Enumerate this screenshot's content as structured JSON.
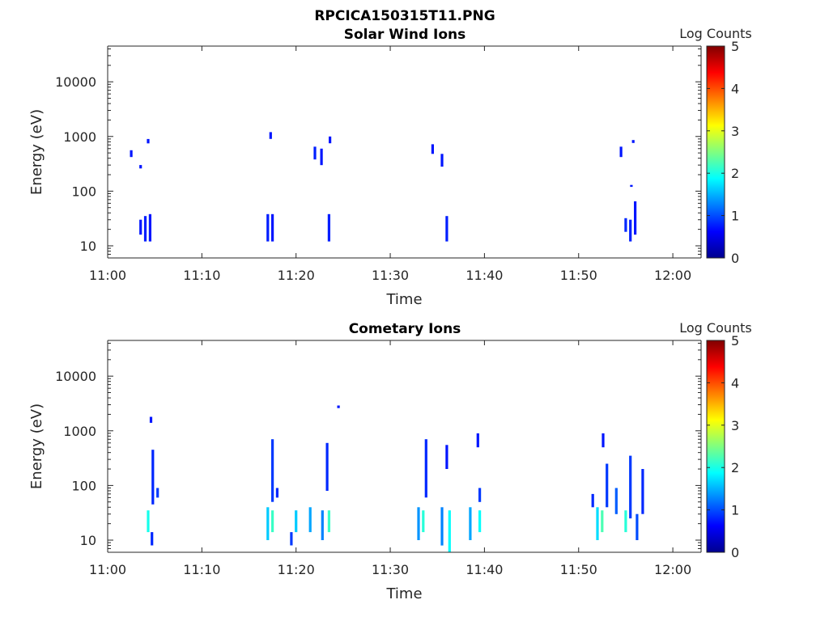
{
  "figure": {
    "title": "RPCICA150315T11.PNG"
  },
  "chart_data": [
    {
      "type": "heatmap",
      "title": "Solar Wind Ions",
      "xlabel": "Time",
      "ylabel": "Energy (eV)",
      "x_ticks": [
        "11:00",
        "11:10",
        "11:20",
        "11:30",
        "11:40",
        "11:50",
        "12:00"
      ],
      "xlim": [
        "11:00",
        "12:03"
      ],
      "y_ticks": [
        "10",
        "100",
        "1000",
        "10000"
      ],
      "ylim": [
        6,
        45000
      ],
      "yscale": "log",
      "colorbar": {
        "label": "Log Counts",
        "ticks": [
          "0",
          "1",
          "2",
          "3",
          "4",
          "5"
        ],
        "range": [
          0,
          5
        ],
        "colormap": "jet"
      },
      "cells": [
        {
          "t": "11:03.5",
          "e_lo": 16,
          "e_hi": 30,
          "v": 0.2
        },
        {
          "t": "11:04.0",
          "e_lo": 12,
          "e_hi": 35,
          "v": 0.25
        },
        {
          "t": "11:04.5",
          "e_lo": 12,
          "e_hi": 38,
          "v": 0.2
        },
        {
          "t": "11:02.5",
          "e_lo": 420,
          "e_hi": 560,
          "v": 0.2
        },
        {
          "t": "11:03.5",
          "e_lo": 260,
          "e_hi": 300,
          "v": 0.2
        },
        {
          "t": "11:04.3",
          "e_lo": 750,
          "e_hi": 900,
          "v": 0.2
        },
        {
          "t": "11:17.0",
          "e_lo": 12,
          "e_hi": 38,
          "v": 0.25
        },
        {
          "t": "11:17.5",
          "e_lo": 12,
          "e_hi": 38,
          "v": 0.2
        },
        {
          "t": "11:17.3",
          "e_lo": 900,
          "e_hi": 1200,
          "v": 0.2
        },
        {
          "t": "11:22.0",
          "e_lo": 380,
          "e_hi": 650,
          "v": 0.25
        },
        {
          "t": "11:22.7",
          "e_lo": 300,
          "e_hi": 600,
          "v": 0.2
        },
        {
          "t": "11:23.5",
          "e_lo": 12,
          "e_hi": 38,
          "v": 0.25
        },
        {
          "t": "11:23.6",
          "e_lo": 750,
          "e_hi": 1000,
          "v": 0.2
        },
        {
          "t": "11:34.5",
          "e_lo": 480,
          "e_hi": 720,
          "v": 0.2
        },
        {
          "t": "11:35.5",
          "e_lo": 280,
          "e_hi": 480,
          "v": 0.2
        },
        {
          "t": "11:36.0",
          "e_lo": 12,
          "e_hi": 35,
          "v": 0.25
        },
        {
          "t": "11:54.5",
          "e_lo": 420,
          "e_hi": 650,
          "v": 0.2
        },
        {
          "t": "11:55.0",
          "e_lo": 18,
          "e_hi": 32,
          "v": 0.3
        },
        {
          "t": "11:55.5",
          "e_lo": 12,
          "e_hi": 30,
          "v": 0.25
        },
        {
          "t": "11:56.0",
          "e_lo": 16,
          "e_hi": 65,
          "v": 0.2
        },
        {
          "t": "11:55.6",
          "e_lo": 120,
          "e_hi": 130,
          "v": 0.2
        },
        {
          "t": "11:55.8",
          "e_lo": 760,
          "e_hi": 860,
          "v": 0.2
        }
      ]
    },
    {
      "type": "heatmap",
      "title": "Cometary Ions",
      "xlabel": "Time",
      "ylabel": "Energy (eV)",
      "x_ticks": [
        "11:00",
        "11:10",
        "11:20",
        "11:30",
        "11:40",
        "11:50",
        "12:00"
      ],
      "xlim": [
        "11:00",
        "12:03"
      ],
      "y_ticks": [
        "10",
        "100",
        "1000",
        "10000"
      ],
      "ylim": [
        6,
        45000
      ],
      "yscale": "log",
      "colorbar": {
        "label": "Log Counts",
        "ticks": [
          "0",
          "1",
          "2",
          "3",
          "4",
          "5"
        ],
        "range": [
          0,
          5
        ],
        "colormap": "jet"
      },
      "cells": [
        {
          "t": "11:04.3",
          "e_lo": 14,
          "e_hi": 35,
          "v": 1.6
        },
        {
          "t": "11:04.7",
          "e_lo": 8,
          "e_hi": 14,
          "v": 0.3
        },
        {
          "t": "11:04.8",
          "e_lo": 45,
          "e_hi": 450,
          "v": 0.3
        },
        {
          "t": "11:05.3",
          "e_lo": 60,
          "e_hi": 90,
          "v": 0.4
        },
        {
          "t": "11:04.6",
          "e_lo": 1400,
          "e_hi": 1800,
          "v": 0.2
        },
        {
          "t": "11:17.0",
          "e_lo": 10,
          "e_hi": 40,
          "v": 1.2
        },
        {
          "t": "11:17.5",
          "e_lo": 14,
          "e_hi": 35,
          "v": 1.8
        },
        {
          "t": "11:17.5",
          "e_lo": 50,
          "e_hi": 700,
          "v": 0.4
        },
        {
          "t": "11:18.0",
          "e_lo": 60,
          "e_hi": 90,
          "v": 0.3
        },
        {
          "t": "11:19.5",
          "e_lo": 8,
          "e_hi": 14,
          "v": 0.4
        },
        {
          "t": "11:20.0",
          "e_lo": 14,
          "e_hi": 35,
          "v": 1.2
        },
        {
          "t": "11:21.5",
          "e_lo": 14,
          "e_hi": 40,
          "v": 1.0
        },
        {
          "t": "11:22.8",
          "e_lo": 10,
          "e_hi": 35,
          "v": 0.8
        },
        {
          "t": "11:23.5",
          "e_lo": 14,
          "e_hi": 35,
          "v": 1.8
        },
        {
          "t": "11:23.3",
          "e_lo": 80,
          "e_hi": 600,
          "v": 0.3
        },
        {
          "t": "11:24.5",
          "e_lo": 2600,
          "e_hi": 2900,
          "v": 0.2
        },
        {
          "t": "11:33.0",
          "e_lo": 10,
          "e_hi": 40,
          "v": 0.9
        },
        {
          "t": "11:33.5",
          "e_lo": 14,
          "e_hi": 35,
          "v": 1.7
        },
        {
          "t": "11:33.8",
          "e_lo": 60,
          "e_hi": 700,
          "v": 0.3
        },
        {
          "t": "11:35.5",
          "e_lo": 8,
          "e_hi": 40,
          "v": 0.8
        },
        {
          "t": "11:36.3",
          "e_lo": 6,
          "e_hi": 35,
          "v": 1.5
        },
        {
          "t": "11:36.0",
          "e_lo": 200,
          "e_hi": 550,
          "v": 0.2
        },
        {
          "t": "11:38.5",
          "e_lo": 10,
          "e_hi": 40,
          "v": 1.0
        },
        {
          "t": "11:39.5",
          "e_lo": 14,
          "e_hi": 35,
          "v": 1.5
        },
        {
          "t": "11:39.5",
          "e_lo": 50,
          "e_hi": 90,
          "v": 0.4
        },
        {
          "t": "11:39.3",
          "e_lo": 500,
          "e_hi": 900,
          "v": 0.2
        },
        {
          "t": "11:51.5",
          "e_lo": 40,
          "e_hi": 70,
          "v": 0.3
        },
        {
          "t": "11:52.0",
          "e_lo": 10,
          "e_hi": 40,
          "v": 1.3
        },
        {
          "t": "11:52.5",
          "e_lo": 14,
          "e_hi": 35,
          "v": 1.9
        },
        {
          "t": "11:53.0",
          "e_lo": 40,
          "e_hi": 250,
          "v": 0.4
        },
        {
          "t": "11:52.6",
          "e_lo": 500,
          "e_hi": 900,
          "v": 0.2
        },
        {
          "t": "11:54.0",
          "e_lo": 30,
          "e_hi": 90,
          "v": 0.6
        },
        {
          "t": "11:55.0",
          "e_lo": 14,
          "e_hi": 35,
          "v": 1.7
        },
        {
          "t": "11:55.5",
          "e_lo": 25,
          "e_hi": 350,
          "v": 0.4
        },
        {
          "t": "11:56.2",
          "e_lo": 10,
          "e_hi": 30,
          "v": 0.5
        },
        {
          "t": "11:56.8",
          "e_lo": 30,
          "e_hi": 200,
          "v": 0.3
        }
      ]
    }
  ]
}
